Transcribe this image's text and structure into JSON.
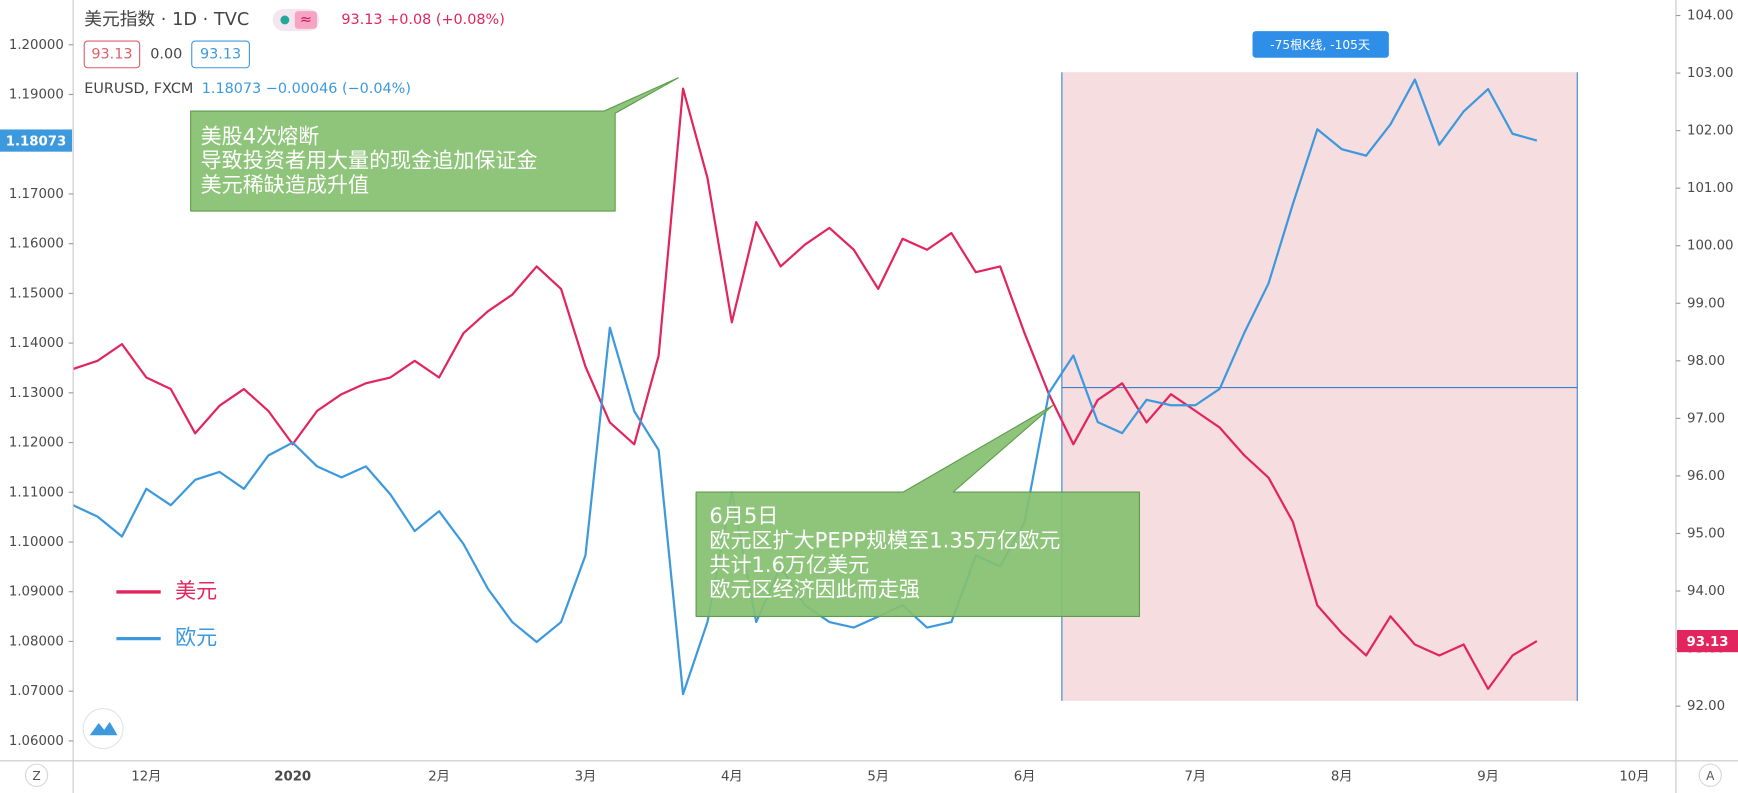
{
  "header": {
    "symbol": "美元指数 · 1D · TVC",
    "quote": "93.13 +0.08 (+0.08%)",
    "boxes": [
      "93.13",
      "0.00",
      "93.13"
    ],
    "compare_symbol": "EURUSD, FXCM",
    "compare_quote": "1.18073 −0.00046 (−0.04%)"
  },
  "chart_data": {
    "type": "line",
    "categories": [
      null,
      null,
      null,
      "12月",
      null,
      null,
      null,
      null,
      null,
      "2020",
      null,
      null,
      null,
      null,
      null,
      "2月",
      null,
      null,
      null,
      null,
      null,
      "3月",
      null,
      null,
      null,
      null,
      null,
      "4月",
      null,
      null,
      null,
      null,
      null,
      "5月",
      null,
      null,
      null,
      null,
      null,
      "6月",
      null,
      null,
      null,
      null,
      null,
      null,
      "7月",
      null,
      null,
      null,
      null,
      null,
      "8月",
      null,
      null,
      null,
      null,
      null,
      "9月",
      null,
      null,
      null,
      null,
      null,
      "10月",
      null
    ],
    "series": [
      {
        "name": "美元",
        "color": "#e2255e",
        "axis": "y2",
        "values": [
          97.86,
          98.0,
          98.29,
          97.71,
          97.51,
          96.74,
          97.22,
          97.51,
          97.13,
          96.55,
          97.13,
          97.42,
          97.61,
          97.71,
          98.0,
          97.71,
          98.48,
          98.86,
          99.15,
          99.64,
          99.25,
          97.9,
          96.93,
          96.55,
          98.09,
          102.73,
          101.18,
          98.67,
          100.41,
          99.64,
          100.02,
          100.31,
          99.93,
          99.25,
          100.12,
          99.93,
          100.22,
          99.54,
          99.64,
          98.48,
          97.42,
          96.55,
          97.32,
          97.61,
          96.93,
          97.42,
          97.13,
          96.84,
          96.36,
          95.97,
          95.2,
          93.75,
          93.27,
          92.88,
          93.56,
          93.07,
          92.88,
          93.07,
          92.3,
          92.88,
          93.13,
          null,
          null,
          null,
          null,
          null
        ]
      },
      {
        "name": "欧元",
        "color": "#3d99dd",
        "values": [
          1.1074,
          1.1051,
          1.1011,
          1.1107,
          1.1074,
          1.1125,
          1.1141,
          1.1107,
          1.1174,
          1.12,
          1.1152,
          1.113,
          1.1152,
          1.1096,
          1.1022,
          1.1062,
          1.0996,
          1.0906,
          1.0839,
          1.0799,
          1.0839,
          1.0973,
          1.1431,
          1.1263,
          1.1185,
          1.0694,
          1.0839,
          1.11,
          1.0839,
          1.0951,
          1.0873,
          1.0839,
          1.0828,
          1.085,
          1.0873,
          1.0828,
          1.0839,
          1.0973,
          1.0951,
          1.104,
          1.13,
          1.1375,
          1.1241,
          1.1219,
          1.1286,
          1.1275,
          1.1275,
          1.1308,
          1.142,
          1.152,
          1.168,
          1.183,
          1.179,
          1.1777,
          1.184,
          1.193,
          1.1799,
          1.1866,
          1.1911,
          1.1821,
          1.18073,
          null,
          null,
          null,
          null,
          null
        ]
      }
    ],
    "ylim": [
      1.056,
      1.209
    ],
    "yticks": [
      {
        "value": 1.06,
        "label": "1.06000"
      },
      {
        "value": 1.07,
        "label": "1.07000"
      },
      {
        "value": 1.08,
        "label": "1.08000"
      },
      {
        "value": 1.09,
        "label": "1.09000"
      },
      {
        "value": 1.1,
        "label": "1.10000"
      },
      {
        "value": 1.11,
        "label": "1.11000"
      },
      {
        "value": 1.12,
        "label": "1.12000"
      },
      {
        "value": 1.13,
        "label": "1.13000"
      },
      {
        "value": 1.14,
        "label": "1.14000"
      },
      {
        "value": 1.15,
        "label": "1.15000"
      },
      {
        "value": 1.16,
        "label": "1.16000"
      },
      {
        "value": 1.17,
        "label": "1.17000"
      },
      {
        "value": 1.19,
        "label": "1.19000"
      },
      {
        "value": 1.2,
        "label": "1.20000"
      }
    ],
    "y2lim": [
      91.05,
      104.27
    ],
    "y2ticks": [
      {
        "value": 92,
        "label": "92.00"
      },
      {
        "value": 93,
        "label": "93.00"
      },
      {
        "value": 94,
        "label": "94.00"
      },
      {
        "value": 95,
        "label": "95.00"
      },
      {
        "value": 96,
        "label": "96.00"
      },
      {
        "value": 97,
        "label": "97.00"
      },
      {
        "value": 98,
        "label": "98.00"
      },
      {
        "value": 99,
        "label": "99.00"
      },
      {
        "value": 100,
        "label": "100.00"
      },
      {
        "value": 101,
        "label": "101.00"
      },
      {
        "value": 102,
        "label": "102.00"
      },
      {
        "value": 103,
        "label": "103.00"
      },
      {
        "value": 104,
        "label": "104.00"
      }
    ],
    "grid": false,
    "legend": "lower left",
    "price_tags": [
      {
        "value": 1.18073,
        "label": "1.18073"
      },
      {
        "value": 93.13,
        "label": "93.13",
        "axis": "y2"
      }
    ]
  },
  "annotations": [
    {
      "lines": [
        "美股4次熔断",
        "导致投资者用大量的现金追加保证金",
        "美元稀缺造成升值"
      ]
    },
    {
      "lines": [
        "6月5日",
        "欧元区扩大PEPP规模至1.35万亿欧元",
        "共计1.6万亿美元",
        "欧元区经济因此而走强"
      ]
    }
  ],
  "range_label": "-75根K线, -105天",
  "axis_buttons": [
    "Z",
    "A"
  ]
}
